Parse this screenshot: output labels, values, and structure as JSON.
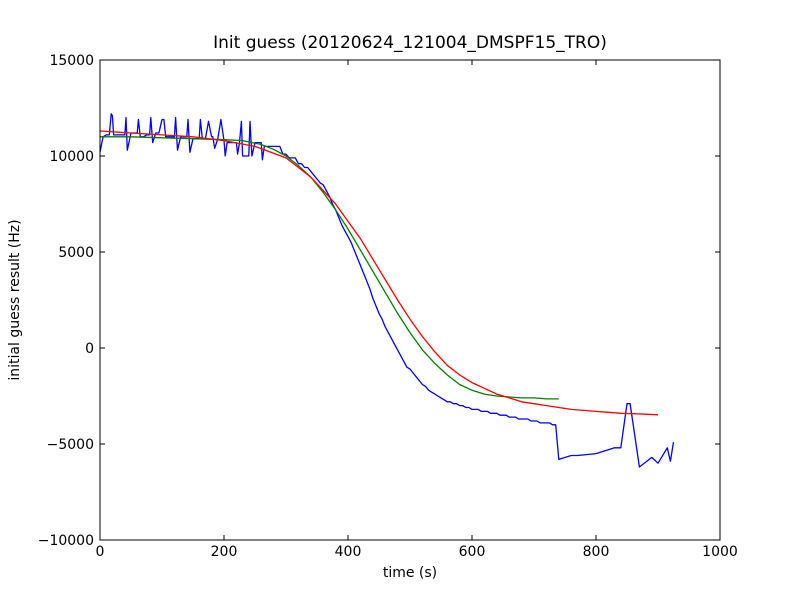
{
  "chart_data": {
    "type": "line",
    "title": "Init guess (20120624_121004_DMSPF15_TRO)",
    "xlabel": "time (s)",
    "ylabel": "initial guess result (Hz)",
    "xlim": [
      0,
      1000
    ],
    "ylim": [
      -10000,
      15000
    ],
    "x_ticks": [
      0,
      200,
      400,
      600,
      800,
      1000
    ],
    "y_ticks": [
      -10000,
      -5000,
      0,
      5000,
      10000,
      15000
    ],
    "x_tick_labels": [
      "0",
      "200",
      "400",
      "600",
      "800",
      "1000"
    ],
    "y_tick_labels": [
      "−10000",
      "−5000",
      "0",
      "5000",
      "10000",
      "15000"
    ],
    "grid": false,
    "legend": "none",
    "series": [
      {
        "color": "#0000ff",
        "x": [
          0,
          5,
          10,
          15,
          18,
          20,
          22,
          25,
          30,
          35,
          40,
          42,
          44,
          50,
          55,
          60,
          62,
          65,
          70,
          75,
          80,
          82,
          85,
          90,
          95,
          100,
          103,
          106,
          110,
          115,
          120,
          122,
          125,
          130,
          135,
          140,
          142,
          145,
          150,
          155,
          160,
          162,
          165,
          170,
          175,
          180,
          182,
          185,
          190,
          195,
          200,
          202,
          205,
          210,
          215,
          220,
          222,
          225,
          228,
          230,
          235,
          240,
          242,
          245,
          250,
          255,
          260,
          262,
          265,
          270,
          275,
          280,
          282,
          285,
          290,
          295,
          300,
          305,
          310,
          315,
          320,
          325,
          330,
          335,
          340,
          345,
          350,
          355,
          360,
          365,
          370,
          375,
          380,
          385,
          390,
          395,
          400,
          405,
          410,
          415,
          420,
          425,
          430,
          435,
          440,
          445,
          450,
          455,
          460,
          465,
          470,
          475,
          480,
          485,
          490,
          495,
          500,
          505,
          510,
          515,
          520,
          525,
          530,
          535,
          540,
          545,
          550,
          555,
          560,
          565,
          570,
          575,
          580,
          585,
          590,
          595,
          600,
          605,
          610,
          615,
          620,
          625,
          630,
          635,
          640,
          645,
          650,
          655,
          660,
          665,
          670,
          675,
          680,
          685,
          690,
          695,
          700,
          705,
          710,
          715,
          720,
          725,
          730,
          735,
          740,
          760,
          770,
          800,
          830,
          840,
          850,
          855,
          870,
          890,
          900,
          915,
          920,
          925
        ],
        "y": [
          10200,
          11000,
          11100,
          11100,
          12200,
          12100,
          11100,
          11100,
          11100,
          11100,
          11100,
          12000,
          10300,
          11200,
          11200,
          11200,
          11900,
          11000,
          11000,
          11100,
          11100,
          12000,
          10700,
          11200,
          11200,
          11900,
          11900,
          11000,
          11000,
          11000,
          11000,
          12000,
          10300,
          11000,
          11000,
          11000,
          11900,
          10200,
          10900,
          10900,
          10900,
          11900,
          10900,
          10900,
          11800,
          11000,
          11000,
          10400,
          10900,
          11900,
          10800,
          10000,
          10700,
          10700,
          10700,
          10700,
          10100,
          10700,
          11800,
          10000,
          10000,
          10000,
          11800,
          10000,
          10700,
          10700,
          10700,
          9800,
          10500,
          10500,
          10500,
          10500,
          10500,
          10500,
          10500,
          10100,
          10100,
          9900,
          9900,
          9900,
          9600,
          9600,
          9400,
          9400,
          9200,
          9000,
          8800,
          8600,
          8500,
          8200,
          7900,
          7500,
          7200,
          6800,
          6400,
          6100,
          5800,
          5500,
          5100,
          4700,
          4300,
          3900,
          3500,
          3100,
          2600,
          2200,
          1800,
          1500,
          1100,
          800,
          500,
          200,
          -100,
          -400,
          -700,
          -1000,
          -1100,
          -1300,
          -1500,
          -1700,
          -1900,
          -2000,
          -2200,
          -2300,
          -2400,
          -2500,
          -2600,
          -2700,
          -2800,
          -2800,
          -2900,
          -2900,
          -3000,
          -3000,
          -3100,
          -3100,
          -3200,
          -3200,
          -3200,
          -3300,
          -3300,
          -3300,
          -3400,
          -3400,
          -3400,
          -3500,
          -3500,
          -3500,
          -3600,
          -3600,
          -3600,
          -3700,
          -3700,
          -3700,
          -3700,
          -3800,
          -3800,
          -3800,
          -3900,
          -3900,
          -3900,
          -3900,
          -4000,
          -4000,
          -5800,
          -5600,
          -5600,
          -5500,
          -5200,
          -5200,
          -2900,
          -2900,
          -6200,
          -5700,
          -6000,
          -5200,
          -5900,
          -4900
        ]
      },
      {
        "color": "#008000",
        "x": [
          0,
          50,
          100,
          150,
          200,
          230,
          260,
          280,
          300,
          320,
          340,
          360,
          380,
          400,
          420,
          440,
          460,
          480,
          500,
          520,
          540,
          560,
          580,
          600,
          620,
          640,
          660,
          680,
          700,
          720,
          740
        ],
        "y": [
          11000,
          11000,
          10950,
          10900,
          10850,
          10800,
          10600,
          10350,
          10000,
          9500,
          8900,
          8100,
          7200,
          6200,
          5100,
          4000,
          2900,
          1800,
          800,
          -100,
          -800,
          -1400,
          -1900,
          -2200,
          -2400,
          -2500,
          -2550,
          -2600,
          -2600,
          -2650,
          -2650
        ]
      },
      {
        "color": "#ff0000",
        "x": [
          0,
          50,
          100,
          150,
          200,
          250,
          300,
          340,
          380,
          420,
          450,
          480,
          500,
          520,
          540,
          560,
          580,
          600,
          620,
          640,
          660,
          680,
          700,
          720,
          740,
          760,
          780,
          800,
          820,
          840,
          860,
          880,
          900
        ],
        "y": [
          11300,
          11200,
          11100,
          11000,
          10800,
          10500,
          9900,
          8900,
          7500,
          5700,
          4100,
          2500,
          1500,
          600,
          -200,
          -900,
          -1400,
          -1800,
          -2100,
          -2400,
          -2600,
          -2800,
          -2900,
          -3000,
          -3100,
          -3200,
          -3250,
          -3300,
          -3350,
          -3400,
          -3420,
          -3450,
          -3480
        ]
      }
    ]
  }
}
